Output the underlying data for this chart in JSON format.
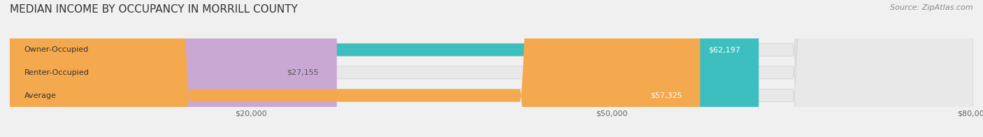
{
  "title": "MEDIAN INCOME BY OCCUPANCY IN MORRILL COUNTY",
  "source": "Source: ZipAtlas.com",
  "categories": [
    "Owner-Occupied",
    "Renter-Occupied",
    "Average"
  ],
  "values": [
    62197,
    27155,
    57325
  ],
  "bar_colors": [
    "#3dbfbf",
    "#c9a8d4",
    "#f5a94e"
  ],
  "label_colors": [
    "#ffffff",
    "#555555",
    "#ffffff"
  ],
  "value_labels": [
    "$62,197",
    "$27,155",
    "$57,325"
  ],
  "xlim": [
    0,
    80000
  ],
  "xticks": [
    20000,
    50000,
    80000
  ],
  "xtick_labels": [
    "$20,000",
    "$50,000",
    "$80,000"
  ],
  "background_color": "#f0f0f0",
  "bar_background_color": "#e8e8e8",
  "title_fontsize": 11,
  "source_fontsize": 8,
  "bar_label_fontsize": 8,
  "value_label_fontsize": 8,
  "tick_fontsize": 8
}
